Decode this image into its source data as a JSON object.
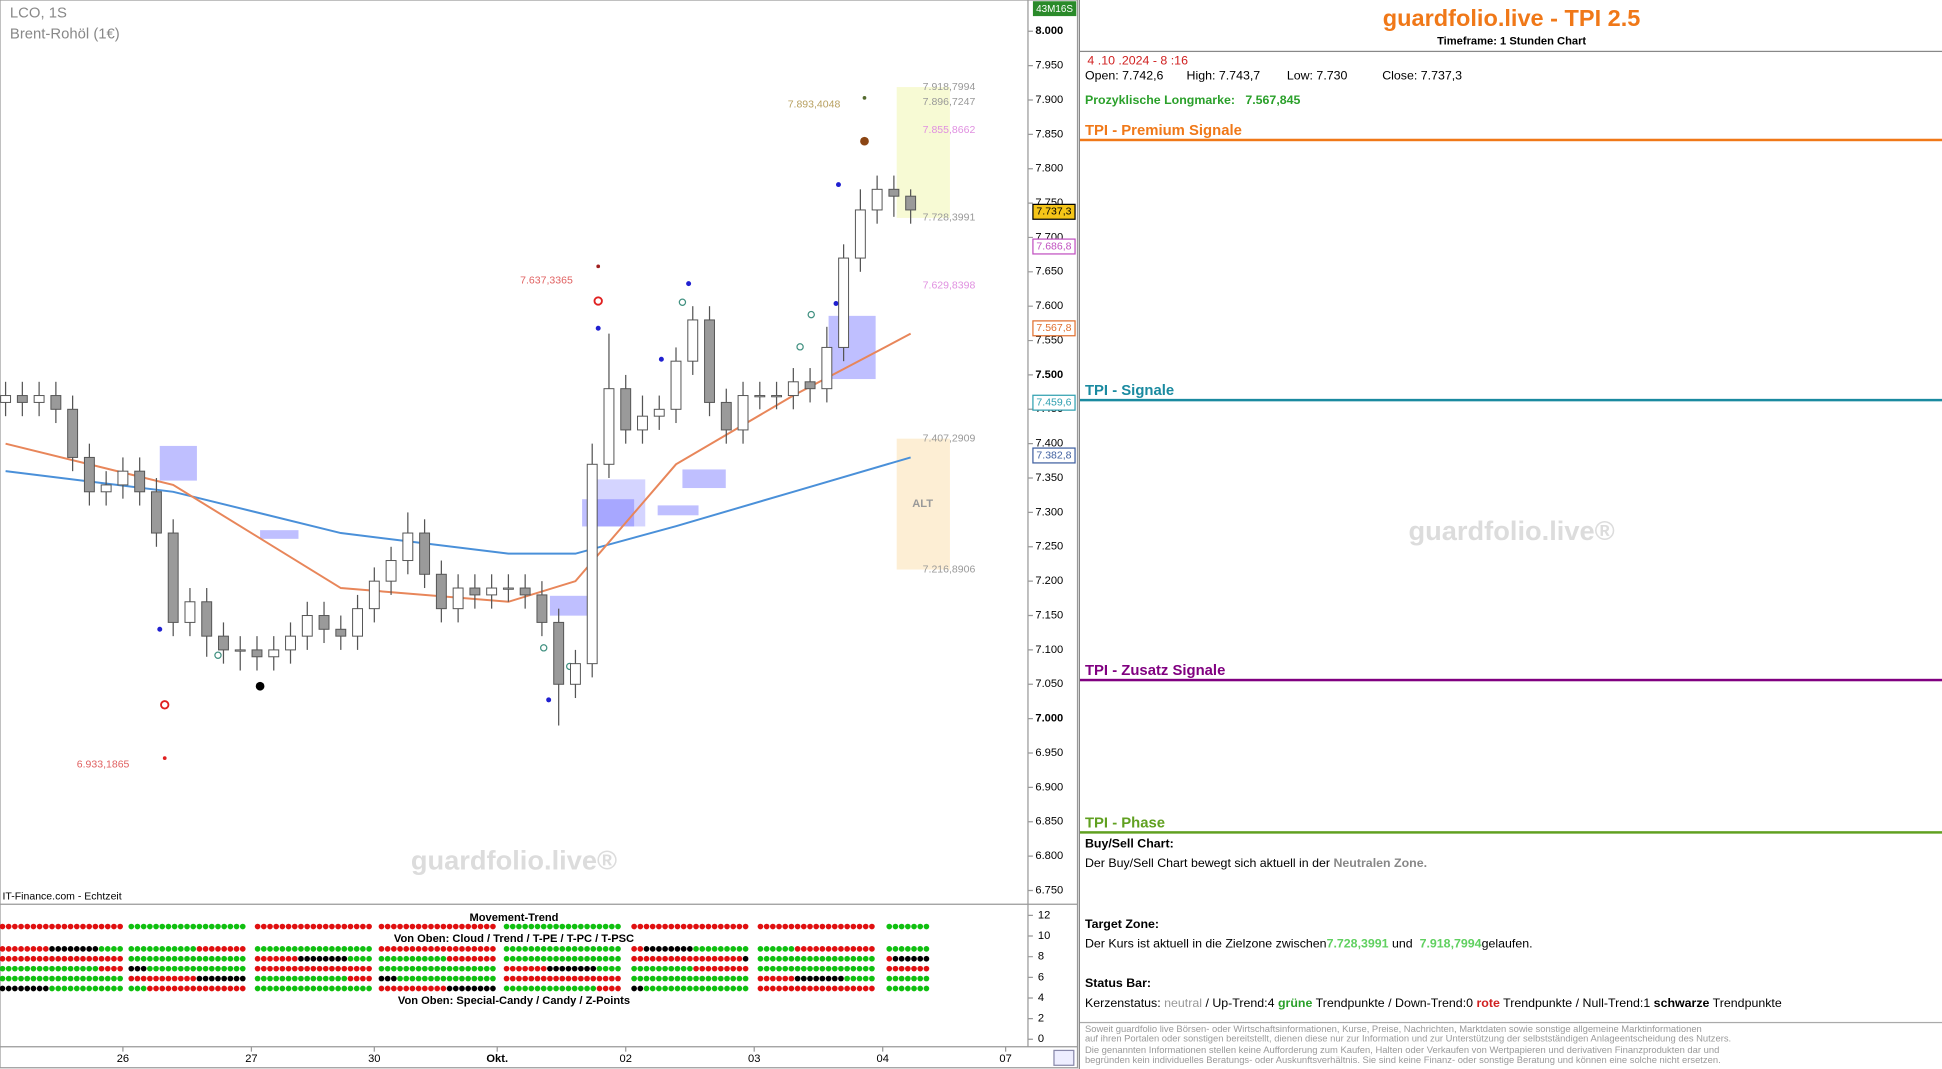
{
  "chart_data": {
    "type": "candlestick",
    "title": "LCO, 1S",
    "subtitle": "Brent-Rohöl (1€)",
    "source": "IT-Finance.com - Echtzeit",
    "watermark": "guardfolio.live®",
    "badge": "43M16S",
    "zone_label": "ALT",
    "up_color": "#ffffff",
    "down_color": "#9a9a9a",
    "grid": false,
    "ylim": [
      6.73,
      8.04
    ],
    "yticks": [
      {
        "value": 6.75,
        "label": "6.750"
      },
      {
        "value": 6.8,
        "label": "6.800"
      },
      {
        "value": 6.85,
        "label": "6.850"
      },
      {
        "value": 6.9,
        "label": "6.900"
      },
      {
        "value": 6.95,
        "label": "6.950"
      },
      {
        "value": 7,
        "label": "7.000"
      },
      {
        "value": 7.05,
        "label": "7.050"
      },
      {
        "value": 7.1,
        "label": "7.100"
      },
      {
        "value": 7.15,
        "label": "7.150"
      },
      {
        "value": 7.2,
        "label": "7.200"
      },
      {
        "value": 7.25,
        "label": "7.250"
      },
      {
        "value": 7.3,
        "label": "7.300"
      },
      {
        "value": 7.35,
        "label": "7.350"
      },
      {
        "value": 7.4,
        "label": "7.400"
      },
      {
        "value": 7.45,
        "label": "7.450"
      },
      {
        "value": 7.5,
        "label": "7.500"
      },
      {
        "value": 7.55,
        "label": "7.550"
      },
      {
        "value": 7.6,
        "label": "7.600"
      },
      {
        "value": 7.65,
        "label": "7.650"
      },
      {
        "value": 7.7,
        "label": "7.700"
      },
      {
        "value": 7.75,
        "label": "7.750"
      },
      {
        "value": 7.8,
        "label": "7.800"
      },
      {
        "value": 7.85,
        "label": "7.850"
      },
      {
        "value": 7.9,
        "label": "7.900"
      },
      {
        "value": 7.95,
        "label": "7.950"
      },
      {
        "value": 8,
        "label": "8.000"
      }
    ],
    "xlim": [
      -22,
      162
    ],
    "xticks": [
      {
        "value": 0,
        "label": "26"
      },
      {
        "value": 23,
        "label": "27"
      },
      {
        "value": 45,
        "label": "30"
      },
      {
        "value": 67,
        "label": "Okt."
      },
      {
        "value": 90,
        "label": "02"
      },
      {
        "value": 113,
        "label": "03"
      },
      {
        "value": 136,
        "label": "04"
      },
      {
        "value": 158,
        "label": "07"
      }
    ],
    "x": [
      -21,
      -18,
      -15,
      -12,
      -9,
      -6,
      -3,
      0,
      3,
      6,
      9,
      12,
      15,
      18,
      21,
      24,
      27,
      30,
      33,
      36,
      39,
      42,
      45,
      48,
      51,
      54,
      57,
      60,
      63,
      66,
      69,
      72,
      75,
      78,
      81,
      84,
      87,
      90,
      93,
      96,
      99,
      102,
      105,
      108,
      111,
      114,
      117,
      120,
      123,
      126,
      129,
      132,
      135,
      138,
      141
    ],
    "open": [
      7.46,
      7.47,
      7.46,
      7.47,
      7.45,
      7.38,
      7.33,
      7.34,
      7.36,
      7.33,
      7.27,
      7.14,
      7.17,
      7.12,
      7.1,
      7.1,
      7.09,
      7.1,
      7.12,
      7.15,
      7.13,
      7.12,
      7.16,
      7.2,
      7.23,
      7.27,
      7.21,
      7.16,
      7.19,
      7.18,
      7.19,
      7.19,
      7.18,
      7.14,
      7.05,
      7.08,
      7.37,
      7.48,
      7.42,
      7.44,
      7.45,
      7.52,
      7.58,
      7.46,
      7.42,
      7.47,
      7.47,
      7.47,
      7.49,
      7.48,
      7.54,
      7.67,
      7.74,
      7.77,
      7.76
    ],
    "high": [
      7.49,
      7.49,
      7.49,
      7.49,
      7.47,
      7.4,
      7.36,
      7.38,
      7.38,
      7.35,
      7.29,
      7.19,
      7.19,
      7.14,
      7.12,
      7.12,
      7.12,
      7.14,
      7.17,
      7.17,
      7.15,
      7.18,
      7.22,
      7.25,
      7.3,
      7.29,
      7.23,
      7.21,
      7.21,
      7.21,
      7.21,
      7.21,
      7.2,
      7.16,
      7.1,
      7.4,
      7.56,
      7.5,
      7.47,
      7.47,
      7.54,
      7.6,
      7.6,
      7.48,
      7.49,
      7.49,
      7.49,
      7.51,
      7.51,
      7.57,
      7.69,
      7.77,
      7.79,
      7.79,
      7.77
    ],
    "low": [
      7.44,
      7.44,
      7.44,
      7.43,
      7.36,
      7.31,
      7.31,
      7.32,
      7.31,
      7.25,
      7.12,
      7.12,
      7.09,
      7.08,
      7.07,
      7.07,
      7.07,
      7.08,
      7.1,
      7.11,
      7.1,
      7.1,
      7.14,
      7.18,
      7.21,
      7.19,
      7.14,
      7.14,
      7.16,
      7.16,
      7.17,
      7.16,
      7.12,
      6.99,
      7.03,
      7.06,
      7.35,
      7.4,
      7.4,
      7.42,
      7.43,
      7.5,
      7.44,
      7.4,
      7.4,
      7.45,
      7.45,
      7.45,
      7.46,
      7.46,
      7.52,
      7.65,
      7.72,
      7.73,
      7.72
    ],
    "close": [
      7.47,
      7.46,
      7.47,
      7.45,
      7.38,
      7.33,
      7.34,
      7.36,
      7.33,
      7.27,
      7.14,
      7.17,
      7.12,
      7.1,
      7.1,
      7.09,
      7.1,
      7.12,
      7.15,
      7.13,
      7.12,
      7.16,
      7.2,
      7.23,
      7.27,
      7.21,
      7.16,
      7.19,
      7.18,
      7.19,
      7.19,
      7.18,
      7.14,
      7.05,
      7.08,
      7.37,
      7.48,
      7.42,
      7.44,
      7.45,
      7.52,
      7.58,
      7.46,
      7.42,
      7.47,
      7.47,
      7.47,
      7.49,
      7.48,
      7.54,
      7.67,
      7.74,
      7.77,
      7.76,
      7.74
    ],
    "lines": [
      {
        "color": "#4a90d9",
        "x": [
          -21,
          9,
          39,
          69,
          81,
          99,
          120,
          141
        ],
        "values": [
          7.36,
          7.33,
          7.27,
          7.24,
          7.24,
          7.28,
          7.33,
          7.38
        ]
      },
      {
        "color": "#e8865a",
        "x": [
          -21,
          9,
          39,
          69,
          81,
          99,
          120,
          141
        ],
        "values": [
          7.4,
          7.34,
          7.19,
          7.17,
          7.2,
          7.37,
          7.47,
          7.56
        ]
      }
    ],
    "annotations": [
      {
        "value": 7.8934,
        "label": "7.893,4048",
        "color": "#b8a060"
      },
      {
        "value": 7.9188,
        "label": "7.918,7994",
        "color": "#999999"
      },
      {
        "value": 7.8967,
        "label": "7.896,7247",
        "color": "#999999"
      },
      {
        "value": 7.8559,
        "label": "7.855,8662",
        "color": "#e090e0"
      },
      {
        "value": 7.7284,
        "label": "7.728,3991",
        "color": "#999999"
      },
      {
        "value": 7.6298,
        "label": "7.629,8398",
        "color": "#e090e0"
      },
      {
        "value": 7.6374,
        "label": "7.637,3365",
        "color": "#e06060"
      },
      {
        "value": 7.4073,
        "label": "7.407,2909",
        "color": "#999999"
      },
      {
        "value": 7.2169,
        "label": "7.216,8906",
        "color": "#999999"
      },
      {
        "value": 6.9332,
        "label": "6.933,1865",
        "color": "#e06060"
      }
    ],
    "price_tags": [
      {
        "value": 7.7373,
        "label": "7.737,3",
        "color": "#f5c518"
      },
      {
        "value": 7.6868,
        "label": "7.686,8",
        "color": "#c050c0"
      },
      {
        "value": 7.5678,
        "label": "7.567,8",
        "color": "#e07030"
      },
      {
        "value": 7.4596,
        "label": "7.459,6",
        "color": "#30a0b0"
      },
      {
        "value": 7.3828,
        "label": "7.382,8",
        "color": "#4060a0"
      }
    ],
    "indicator": {
      "title": "Movement-Trend",
      "labels": [
        "Von Oben: Cloud / Trend / T-PE / T-PC / T-PSC",
        "Von Oben: Special-Candy / Candy / Z-Points"
      ],
      "ylim": [
        0,
        12
      ],
      "yticks": [
        12,
        10,
        8,
        6,
        4,
        2,
        0
      ]
    }
  },
  "panel": {
    "title": "guardfolio.live - TPI 2.5",
    "timeframe": "Timeframe: 1 Stunden Chart",
    "date": " 4 .10 .2024 - 8 :16",
    "ohlc": [
      "Open: 7.742,6",
      "High: 7.743,7",
      "Low: 7.730",
      "Close: 7.737,3"
    ],
    "longmark_label": "Prozyklische Longmarke:",
    "longmark_value": "7.567,845",
    "sections": [
      "TPI - Premium Signale",
      "TPI - Signale",
      "TPI - Zusatz Signale",
      "TPI - Phase"
    ],
    "watermark": "guardfolio.live®",
    "buysell": {
      "heading": "Buy/Sell Chart:",
      "text": "Der Buy/Sell Chart bewegt sich aktuell in der",
      "zone": "Neutralen Zone."
    },
    "target": {
      "heading": "Target Zone:",
      "text": "Der Kurs ist aktuell in die Zielzone zwischen",
      "low": "7.728,3991",
      "and": "und",
      "high": "7.918,7994",
      "end": "gelaufen."
    },
    "status": {
      "heading": "Status Bar:",
      "parts": [
        "Kerzenstatus:",
        "neutral",
        "/ Up-Trend:4",
        "grüne",
        "Trendpunkte",
        "/ Down-Trend:0",
        "rote",
        "Trendpunkte",
        "/ Null-Trend:1",
        "schwarze",
        "Trendpunkte"
      ]
    },
    "disclaimer": [
      "Soweit guardfolio live Börsen- oder Wirtschaftsinformationen, Kurse, Preise, Nachrichten, Marktdaten sowie sonstige allgemeine Marktinformationen",
      "auf ihren Portalen oder sonstigen bereitstellt, dienen diese nur zur Information und zur Unterstützung der selbstständigen Anlageentscheidung des Nutzers.",
      "Die genannten Informationen stellen keine Aufforderung zum Kaufen, Halten oder Verkaufen von Wertpapieren und derivativen Finanzprodukten dar und",
      "begründen kein individuelles Beratungs- oder Auskunftsverhältnis. Sie sind keine Finanz- oder sonstige Beratung und können eine solche nicht ersetzen."
    ]
  }
}
